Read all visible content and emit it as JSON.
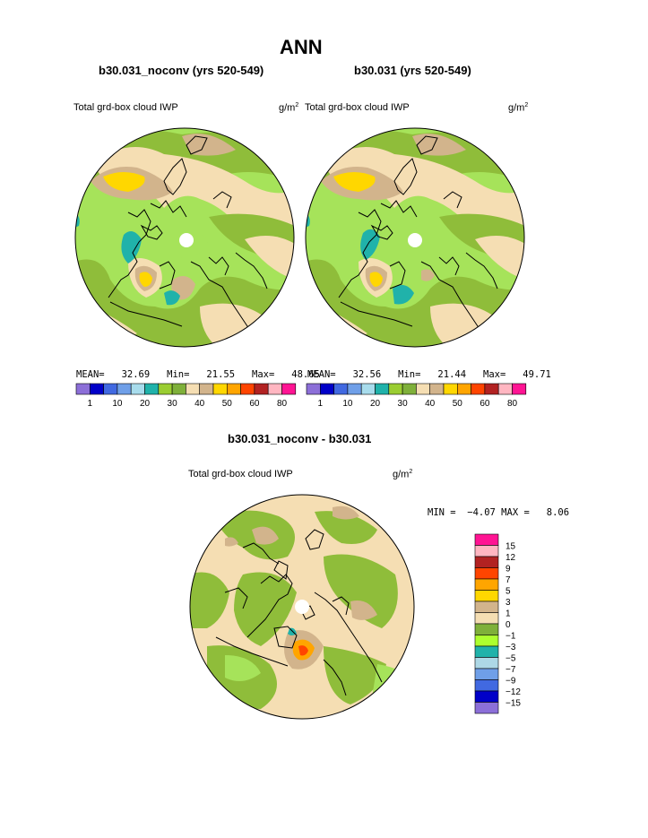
{
  "page": {
    "title": "ANN",
    "left_case": "b30.031_noconv (yrs 520-549)",
    "right_case": "b30.031 (yrs 520-549)",
    "diff_title": "b30.031_noconv - b30.031"
  },
  "panels": {
    "left": {
      "variable": "Total grd-box cloud IWP",
      "units_base": "g/m",
      "units_exp": "2",
      "stats": {
        "mean_label": "MEAN=",
        "mean": "32.69",
        "min_label": "Min=",
        "min": "21.55",
        "max_label": "Max=",
        "max": "48.65"
      }
    },
    "right": {
      "variable": "Total grd-box cloud IWP",
      "units_base": "g/m",
      "units_exp": "2",
      "stats": {
        "mean_label": "MEAN=",
        "mean": "32.56",
        "min_label": "Min=",
        "min": "21.44",
        "max_label": "Max=",
        "max": "49.71"
      }
    },
    "diff": {
      "variable": "Total grd-box cloud IWP",
      "units_base": "g/m",
      "units_exp": "2",
      "stats_text": "MIN =  −4.07 MAX =   8.06"
    }
  },
  "colorbar_main": {
    "colors": [
      "#8c6fd8",
      "#0000c8",
      "#4169e1",
      "#6f9fe8",
      "#a8dcec",
      "#20b2aa",
      "#9acd32",
      "#7fb03a",
      "#f5deb3",
      "#d2b48c",
      "#ffd700",
      "#ffa500",
      "#ff4500",
      "#b22222",
      "#ffb6c1",
      "#ff1493"
    ],
    "tick_labels": [
      "1",
      "10",
      "20",
      "30",
      "40",
      "50",
      "60",
      "80"
    ]
  },
  "colorbar_diff": {
    "colors": [
      "#ff1493",
      "#ffb6c1",
      "#b22222",
      "#ff4500",
      "#ffa500",
      "#ffd700",
      "#d2b48c",
      "#f5deb3",
      "#7fb03a",
      "#adff2f",
      "#20b2aa",
      "#add8e6",
      "#6f9fe8",
      "#4169e1",
      "#0000c8",
      "#8c6fd8"
    ],
    "tick_labels": [
      "15",
      "12",
      "9",
      "7",
      "5",
      "3",
      "1",
      "0",
      "−1",
      "−3",
      "−5",
      "−7",
      "−9",
      "−12",
      "−15"
    ]
  },
  "map_colors": {
    "bg_green": "#a6e35a",
    "dark_green": "#8fbd3a",
    "wheat": "#f5deb3",
    "tan": "#d2b48c",
    "gold": "#ffd700",
    "teal": "#20b2aa",
    "orange": "#ffa500",
    "red": "#ff4500"
  }
}
